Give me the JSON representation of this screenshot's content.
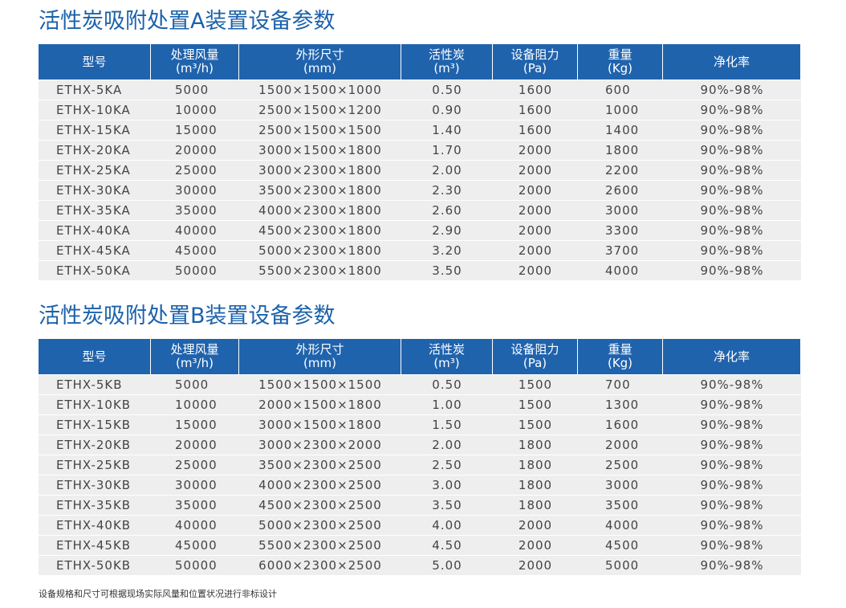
{
  "tables": [
    {
      "title": "活性炭吸附处置A装置设备参数",
      "header": [
        [
          "型号"
        ],
        [
          "处理风量",
          "(m³/h)"
        ],
        [
          "外形尺寸",
          "(mm)"
        ],
        [
          "活性炭",
          "(m³)"
        ],
        [
          "设备阻力",
          "(Pa)"
        ],
        [
          "重量",
          "(Kg)"
        ],
        [
          "净化率"
        ]
      ],
      "rows": [
        [
          "ETHX-5KA",
          "5000",
          "1500×1500×1000",
          "0.50",
          "1600",
          "600",
          "90%-98%"
        ],
        [
          "ETHX-10KA",
          "10000",
          "2500×1500×1200",
          "0.90",
          "1600",
          "1000",
          "90%-98%"
        ],
        [
          "ETHX-15KA",
          "15000",
          "2500×1500×1500",
          "1.40",
          "1600",
          "1400",
          "90%-98%"
        ],
        [
          "ETHX-20KA",
          "20000",
          "3000×1500×1800",
          "1.70",
          "2000",
          "1800",
          "90%-98%"
        ],
        [
          "ETHX-25KA",
          "25000",
          "3000×2300×1800",
          "2.00",
          "2000",
          "2200",
          "90%-98%"
        ],
        [
          "ETHX-30KA",
          "30000",
          "3500×2300×1800",
          "2.30",
          "2000",
          "2600",
          "90%-98%"
        ],
        [
          "ETHX-35KA",
          "35000",
          "4000×2300×1800",
          "2.60",
          "2000",
          "3000",
          "90%-98%"
        ],
        [
          "ETHX-40KA",
          "40000",
          "4500×2300×1800",
          "2.90",
          "2000",
          "3300",
          "90%-98%"
        ],
        [
          "ETHX-45KA",
          "45000",
          "5000×2300×1800",
          "3.20",
          "2000",
          "3700",
          "90%-98%"
        ],
        [
          "ETHX-50KA",
          "50000",
          "5500×2300×1800",
          "3.50",
          "2000",
          "4000",
          "90%-98%"
        ]
      ]
    },
    {
      "title": "活性炭吸附处置B装置设备参数",
      "header": [
        [
          "型号"
        ],
        [
          "处理风量",
          "(m³/h)"
        ],
        [
          "外形尺寸",
          "(mm)"
        ],
        [
          "活性炭",
          "(m³)"
        ],
        [
          "设备阻力",
          "(Pa)"
        ],
        [
          "重量",
          "(Kg)"
        ],
        [
          "净化率"
        ]
      ],
      "rows": [
        [
          "ETHX-5KB",
          "5000",
          "1500×1500×1500",
          "0.50",
          "1500",
          "700",
          "90%-98%"
        ],
        [
          "ETHX-10KB",
          "10000",
          "2000×1500×1800",
          "1.00",
          "1500",
          "1300",
          "90%-98%"
        ],
        [
          "ETHX-15KB",
          "15000",
          "3000×1500×1800",
          "1.50",
          "1500",
          "1600",
          "90%-98%"
        ],
        [
          "ETHX-20KB",
          "20000",
          "3000×2300×2000",
          "2.00",
          "1800",
          "2000",
          "90%-98%"
        ],
        [
          "ETHX-25KB",
          "25000",
          "3500×2300×2500",
          "2.50",
          "1800",
          "2500",
          "90%-98%"
        ],
        [
          "ETHX-30KB",
          "30000",
          "4000×2300×2500",
          "3.00",
          "1800",
          "3000",
          "90%-98%"
        ],
        [
          "ETHX-35KB",
          "35000",
          "4500×2300×2500",
          "3.50",
          "1800",
          "3500",
          "90%-98%"
        ],
        [
          "ETHX-40KB",
          "40000",
          "5000×2300×2500",
          "4.00",
          "2000",
          "4000",
          "90%-98%"
        ],
        [
          "ETHX-45KB",
          "45000",
          "5500×2300×2500",
          "4.50",
          "2000",
          "4500",
          "90%-98%"
        ],
        [
          "ETHX-50KB",
          "50000",
          "6000×2300×2500",
          "5.00",
          "2000",
          "5000",
          "90%-98%"
        ]
      ]
    }
  ],
  "footnote": "设备规格和尺寸可根据现场实际风量和位置状况进行非标设计"
}
